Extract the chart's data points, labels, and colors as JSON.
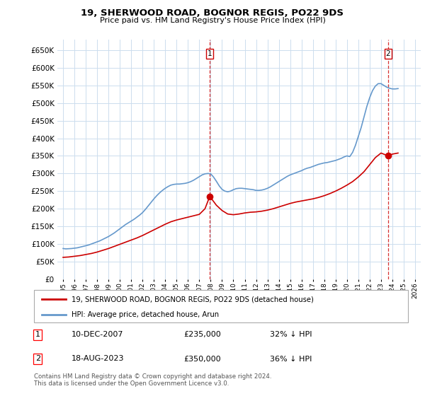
{
  "title": "19, SHERWOOD ROAD, BOGNOR REGIS, PO22 9DS",
  "subtitle": "Price paid vs. HM Land Registry's House Price Index (HPI)",
  "ytick_values": [
    0,
    50000,
    100000,
    150000,
    200000,
    250000,
    300000,
    350000,
    400000,
    450000,
    500000,
    550000,
    600000,
    650000
  ],
  "ylim": [
    0,
    680000
  ],
  "xlim_start": 1994.5,
  "xlim_end": 2026.5,
  "xtick_years": [
    1995,
    1996,
    1997,
    1998,
    1999,
    2000,
    2001,
    2002,
    2003,
    2004,
    2005,
    2006,
    2007,
    2008,
    2009,
    2010,
    2011,
    2012,
    2013,
    2014,
    2015,
    2016,
    2017,
    2018,
    2019,
    2020,
    2021,
    2022,
    2023,
    2024,
    2025,
    2026
  ],
  "hpi_color": "#6699cc",
  "price_color": "#cc0000",
  "marker_color": "#cc0000",
  "dashed_line_color": "#cc0000",
  "background_color": "#ffffff",
  "grid_color": "#ccddee",
  "legend_label_price": "19, SHERWOOD ROAD, BOGNOR REGIS, PO22 9DS (detached house)",
  "legend_label_hpi": "HPI: Average price, detached house, Arun",
  "annotation1_date": "10-DEC-2007",
  "annotation1_price": "£235,000",
  "annotation1_hpi": "32% ↓ HPI",
  "annotation2_date": "18-AUG-2023",
  "annotation2_price": "£350,000",
  "annotation2_hpi": "36% ↓ HPI",
  "footnote": "Contains HM Land Registry data © Crown copyright and database right 2024.\nThis data is licensed under the Open Government Licence v3.0.",
  "sale1_x": 2007.92,
  "sale1_y": 235000,
  "sale2_x": 2023.63,
  "sale2_y": 350000,
  "hpi_x": [
    1995.0,
    1995.25,
    1995.5,
    1995.75,
    1996.0,
    1996.25,
    1996.5,
    1996.75,
    1997.0,
    1997.25,
    1997.5,
    1997.75,
    1998.0,
    1998.25,
    1998.5,
    1998.75,
    1999.0,
    1999.25,
    1999.5,
    1999.75,
    2000.0,
    2000.25,
    2000.5,
    2000.75,
    2001.0,
    2001.25,
    2001.5,
    2001.75,
    2002.0,
    2002.25,
    2002.5,
    2002.75,
    2003.0,
    2003.25,
    2003.5,
    2003.75,
    2004.0,
    2004.25,
    2004.5,
    2004.75,
    2005.0,
    2005.25,
    2005.5,
    2005.75,
    2006.0,
    2006.25,
    2006.5,
    2006.75,
    2007.0,
    2007.25,
    2007.5,
    2007.75,
    2008.0,
    2008.25,
    2008.5,
    2008.75,
    2009.0,
    2009.25,
    2009.5,
    2009.75,
    2010.0,
    2010.25,
    2010.5,
    2010.75,
    2011.0,
    2011.25,
    2011.5,
    2011.75,
    2012.0,
    2012.25,
    2012.5,
    2012.75,
    2013.0,
    2013.25,
    2013.5,
    2013.75,
    2014.0,
    2014.25,
    2014.5,
    2014.75,
    2015.0,
    2015.25,
    2015.5,
    2015.75,
    2016.0,
    2016.25,
    2016.5,
    2016.75,
    2017.0,
    2017.25,
    2017.5,
    2017.75,
    2018.0,
    2018.25,
    2018.5,
    2018.75,
    2019.0,
    2019.25,
    2019.5,
    2019.75,
    2020.0,
    2020.25,
    2020.5,
    2020.75,
    2021.0,
    2021.25,
    2021.5,
    2021.75,
    2022.0,
    2022.25,
    2022.5,
    2022.75,
    2023.0,
    2023.25,
    2023.5,
    2023.75,
    2024.0,
    2024.25,
    2024.5
  ],
  "hpi_y": [
    87000,
    86000,
    86500,
    87000,
    88000,
    89000,
    91000,
    93000,
    95000,
    97000,
    100000,
    103000,
    106000,
    109000,
    113000,
    117000,
    121000,
    126000,
    131000,
    137000,
    143000,
    149000,
    155000,
    160000,
    165000,
    170000,
    176000,
    182000,
    189000,
    198000,
    208000,
    218000,
    228000,
    237000,
    245000,
    252000,
    258000,
    263000,
    267000,
    269000,
    270000,
    270000,
    271000,
    272000,
    274000,
    277000,
    281000,
    286000,
    291000,
    296000,
    299000,
    300000,
    299000,
    290000,
    278000,
    265000,
    255000,
    250000,
    248000,
    250000,
    254000,
    257000,
    258000,
    258000,
    257000,
    256000,
    255000,
    254000,
    252000,
    252000,
    253000,
    255000,
    258000,
    262000,
    267000,
    272000,
    277000,
    282000,
    287000,
    292000,
    296000,
    299000,
    302000,
    305000,
    308000,
    312000,
    315000,
    317000,
    320000,
    323000,
    326000,
    328000,
    330000,
    331000,
    333000,
    335000,
    337000,
    340000,
    343000,
    347000,
    350000,
    348000,
    360000,
    380000,
    405000,
    430000,
    460000,
    490000,
    515000,
    535000,
    548000,
    555000,
    555000,
    550000,
    545000,
    542000,
    540000,
    540000,
    541000
  ],
  "price_x": [
    1995.0,
    1995.5,
    1996.0,
    1996.5,
    1997.0,
    1997.5,
    1998.0,
    1998.5,
    1999.0,
    1999.5,
    2000.0,
    2000.5,
    2001.0,
    2001.5,
    2002.0,
    2002.5,
    2003.0,
    2003.5,
    2004.0,
    2004.5,
    2005.0,
    2005.5,
    2006.0,
    2006.5,
    2007.0,
    2007.5,
    2007.92,
    2008.5,
    2009.0,
    2009.5,
    2010.0,
    2010.5,
    2011.0,
    2011.5,
    2012.0,
    2012.5,
    2013.0,
    2013.5,
    2014.0,
    2014.5,
    2015.0,
    2015.5,
    2016.0,
    2016.5,
    2017.0,
    2017.5,
    2018.0,
    2018.5,
    2019.0,
    2019.5,
    2020.0,
    2020.5,
    2021.0,
    2021.5,
    2022.0,
    2022.5,
    2023.0,
    2023.63,
    2024.0,
    2024.5
  ],
  "price_y": [
    62000,
    63000,
    65000,
    67000,
    70000,
    73000,
    77000,
    82000,
    87000,
    93000,
    99000,
    105000,
    111000,
    117000,
    124000,
    132000,
    140000,
    148000,
    156000,
    163000,
    168000,
    172000,
    176000,
    180000,
    184000,
    200000,
    235000,
    210000,
    195000,
    185000,
    183000,
    185000,
    188000,
    190000,
    191000,
    193000,
    196000,
    200000,
    205000,
    210000,
    215000,
    219000,
    222000,
    225000,
    228000,
    232000,
    237000,
    243000,
    250000,
    258000,
    267000,
    277000,
    290000,
    305000,
    325000,
    345000,
    358000,
    350000,
    355000,
    358000
  ]
}
